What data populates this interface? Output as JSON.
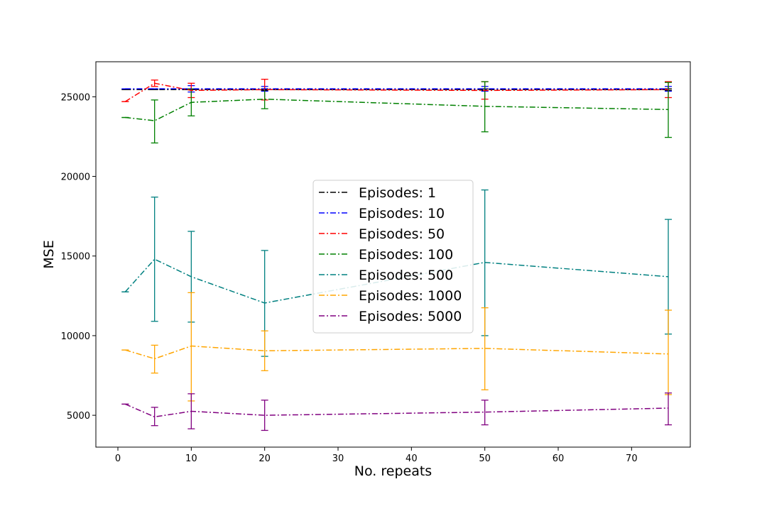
{
  "chart_data": {
    "type": "line",
    "xlabel": "No. repeats",
    "ylabel": "MSE",
    "xlim": [
      -3,
      78
    ],
    "ylim": [
      3000,
      27200
    ],
    "xticks": [
      0,
      10,
      20,
      30,
      40,
      50,
      60,
      70
    ],
    "yticks": [
      5000,
      10000,
      15000,
      20000,
      25000
    ],
    "x": [
      1,
      5,
      10,
      20,
      50,
      75
    ],
    "legend_position": "center",
    "line_style": "dash-dot",
    "grid": false,
    "series": [
      {
        "name": "Episodes: 1",
        "color": "#000000",
        "values": [
          25450,
          25450,
          25450,
          25450,
          25450,
          25450
        ],
        "lower": [
          25450,
          25450,
          25450,
          25400,
          25400,
          25400
        ],
        "upper": [
          25450,
          25450,
          25450,
          25500,
          25500,
          25500
        ]
      },
      {
        "name": "Episodes: 10",
        "color": "#0000ff",
        "values": [
          25500,
          25500,
          25500,
          25500,
          25500,
          25500
        ],
        "lower": [
          25500,
          25500,
          25300,
          25350,
          25350,
          25350
        ],
        "upper": [
          25500,
          25500,
          25700,
          25650,
          25650,
          25650
        ]
      },
      {
        "name": "Episodes: 50",
        "color": "#ff0000",
        "values": [
          24700,
          25850,
          25400,
          25450,
          25400,
          25450
        ],
        "lower": [
          24700,
          25650,
          24950,
          24800,
          24850,
          24950
        ],
        "upper": [
          24700,
          26050,
          25850,
          26100,
          25950,
          25950
        ]
      },
      {
        "name": "Episodes: 100",
        "color": "#008000",
        "values": [
          23700,
          23500,
          24650,
          24850,
          24400,
          24200
        ],
        "lower": [
          23700,
          22100,
          23800,
          24250,
          22800,
          22450
        ],
        "upper": [
          23700,
          24800,
          25500,
          25450,
          25950,
          25900
        ]
      },
      {
        "name": "Episodes: 500",
        "color": "#008080",
        "values": [
          12750,
          14800,
          13700,
          12050,
          14600,
          13700
        ],
        "lower": [
          12750,
          10900,
          10850,
          8700,
          10000,
          10100
        ],
        "upper": [
          12750,
          18700,
          16550,
          15350,
          19150,
          17300
        ]
      },
      {
        "name": "Episodes: 1000",
        "color": "#ffa500",
        "values": [
          9100,
          8550,
          9350,
          9050,
          9200,
          8850
        ],
        "lower": [
          9100,
          7650,
          5900,
          7800,
          6600,
          6300
        ],
        "upper": [
          9100,
          9400,
          12700,
          10300,
          11750,
          11600
        ]
      },
      {
        "name": "Episodes: 5000",
        "color": "#800080",
        "values": [
          5700,
          4900,
          5250,
          5000,
          5200,
          5450
        ],
        "lower": [
          5700,
          4350,
          4150,
          4050,
          4400,
          4400
        ],
        "upper": [
          5700,
          5500,
          6350,
          5950,
          5950,
          6400
        ]
      }
    ]
  }
}
